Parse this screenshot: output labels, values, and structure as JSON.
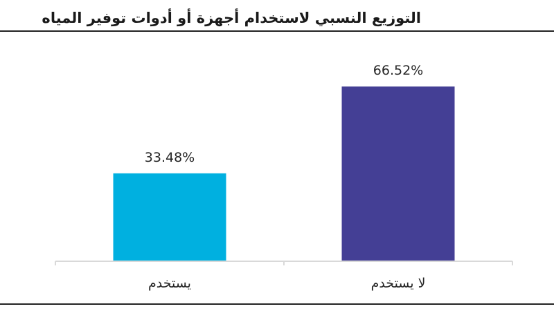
{
  "title": "التوزيع النسبي لاستخدام أجهزة أو أدوات توفير المياه",
  "chart_data": {
    "type": "bar",
    "title": "التوزيع النسبي لاستخدام أجهزة أو أدوات توفير المياه",
    "categories": [
      "يستخدم",
      "لا يستخدم"
    ],
    "values": [
      33.48,
      66.52
    ],
    "value_labels": [
      "33.48%",
      "66.52%"
    ],
    "colors": [
      "#00b0e0",
      "#443f95"
    ],
    "axis_color": "#d9d9d9",
    "ylim": [
      0,
      70
    ],
    "grid": false,
    "legend": "none"
  }
}
